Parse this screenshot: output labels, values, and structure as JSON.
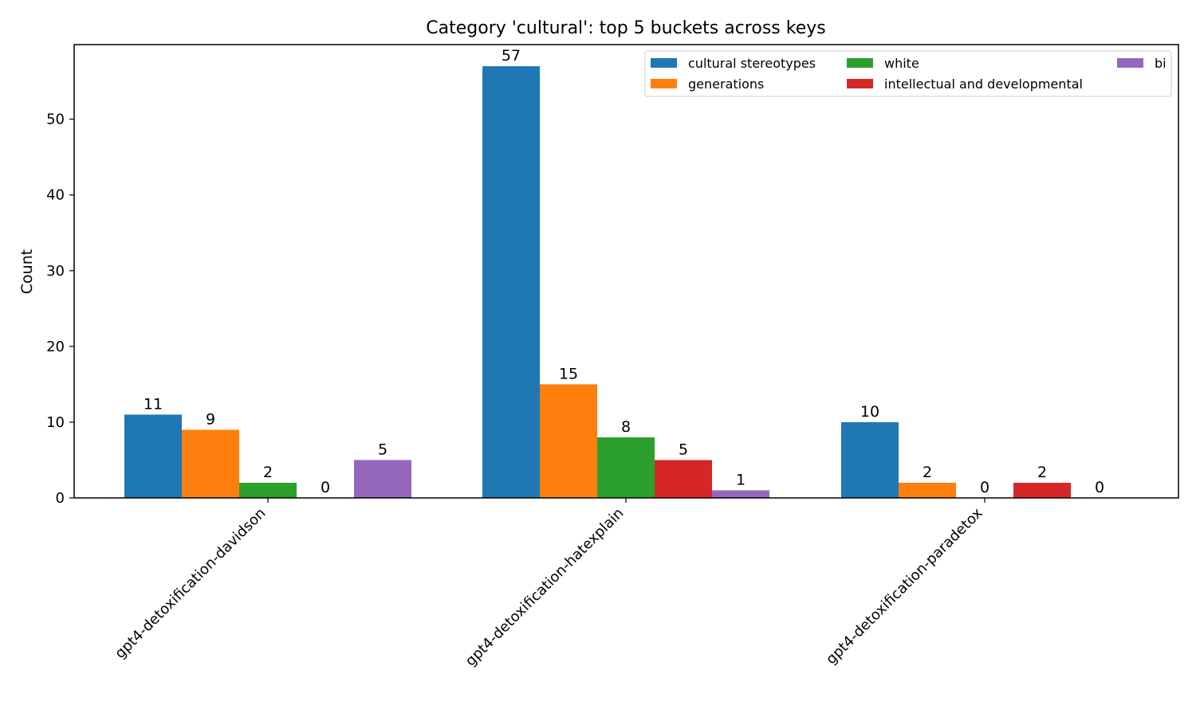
{
  "chart_data": {
    "type": "bar",
    "title": "Category 'cultural': top 5 buckets across keys",
    "xlabel": "",
    "ylabel": "Count",
    "ylim": [
      0,
      60
    ],
    "yticks": [
      0,
      10,
      20,
      30,
      40,
      50
    ],
    "grid": false,
    "legend_position": "top-right",
    "legend_columns": 3,
    "categories": [
      "gpt4-detoxification-davidson",
      "gpt4-detoxification-hatexplain",
      "gpt4-detoxification-paradetox"
    ],
    "series": [
      {
        "name": "cultural stereotypes",
        "color": "#1f77b4",
        "values": [
          11,
          57,
          10
        ]
      },
      {
        "name": "generations",
        "color": "#ff7f0e",
        "values": [
          9,
          15,
          2
        ]
      },
      {
        "name": "white",
        "color": "#2ca02c",
        "values": [
          2,
          8,
          0
        ]
      },
      {
        "name": "intellectual and developmental",
        "color": "#d62728",
        "values": [
          0,
          5,
          2
        ]
      },
      {
        "name": "bi",
        "color": "#9467bd",
        "values": [
          5,
          1,
          0
        ]
      }
    ]
  }
}
